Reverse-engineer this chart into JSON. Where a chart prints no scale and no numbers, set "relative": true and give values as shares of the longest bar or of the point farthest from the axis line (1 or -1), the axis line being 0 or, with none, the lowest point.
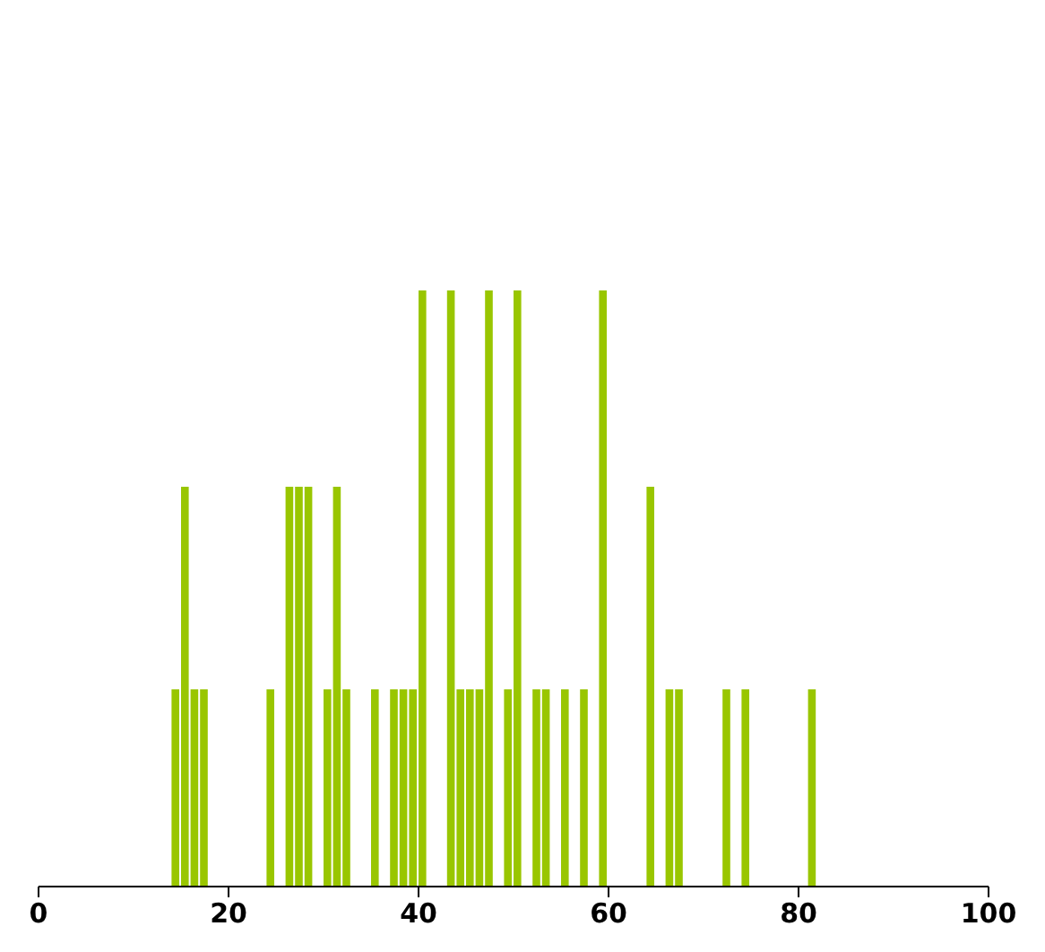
{
  "chart_data": {
    "type": "bar",
    "relative": true,
    "color": "#99c600",
    "x": [
      14.5,
      15.5,
      16.5,
      17.5,
      24.5,
      26.5,
      27.5,
      28.5,
      30.5,
      31.5,
      32.5,
      35.5,
      37.5,
      38.5,
      39.5,
      40.5,
      43.5,
      44.5,
      45.5,
      46.5,
      47.5,
      49.5,
      50.5,
      52.5,
      53.5,
      55.5,
      57.5,
      59.5,
      64.5,
      66.5,
      67.5,
      72.5,
      74.5,
      81.5
    ],
    "values": [
      0.33,
      0.67,
      0.33,
      0.33,
      0.33,
      0.67,
      0.67,
      0.67,
      0.33,
      0.67,
      0.33,
      0.33,
      0.33,
      0.33,
      0.33,
      1,
      1,
      0.33,
      0.33,
      0.33,
      1,
      0.33,
      1,
      0.33,
      0.33,
      0.33,
      0.33,
      1,
      0.67,
      0.33,
      0.33,
      0.33,
      0.33,
      0.33
    ],
    "xlim": [
      0,
      100
    ],
    "xticks": [
      0,
      20,
      40,
      60,
      80,
      100
    ],
    "grid": false
  }
}
